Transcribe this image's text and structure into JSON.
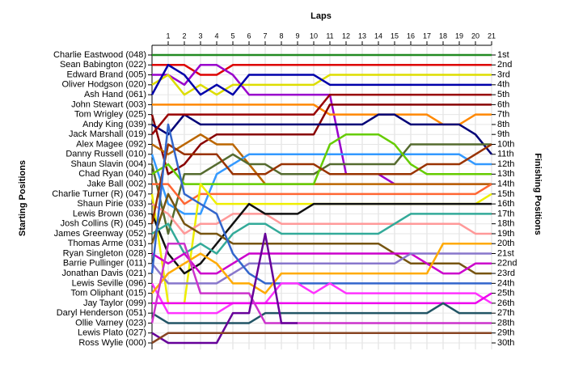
{
  "chart_data": {
    "type": "line",
    "title": "Laps",
    "y_label": "Starting Positions",
    "y2_label": "Finishing Positions",
    "x": [
      0,
      1,
      2,
      3,
      4,
      5,
      6,
      7,
      8,
      9,
      10,
      11,
      12,
      13,
      14,
      15,
      16,
      17,
      18,
      19,
      20,
      21
    ],
    "xlim": [
      0,
      21
    ],
    "xticks": [
      1,
      2,
      3,
      4,
      5,
      6,
      7,
      8,
      9,
      10,
      11,
      12,
      13,
      14,
      15,
      16,
      17,
      18,
      19,
      20,
      21
    ],
    "ylim": [
      1,
      30
    ],
    "yticks": [
      {
        "value": 1,
        "label": "1st"
      },
      {
        "value": 2,
        "label": "2nd"
      },
      {
        "value": 3,
        "label": "3rd"
      },
      {
        "value": 4,
        "label": "4th"
      },
      {
        "value": 5,
        "label": "5th"
      },
      {
        "value": 6,
        "label": "6th"
      },
      {
        "value": 7,
        "label": "7th"
      },
      {
        "value": 8,
        "label": "8th"
      },
      {
        "value": 9,
        "label": "9th"
      },
      {
        "value": 10,
        "label": "10th"
      },
      {
        "value": 11,
        "label": "11th"
      },
      {
        "value": 12,
        "label": "12th"
      },
      {
        "value": 13,
        "label": "13th"
      },
      {
        "value": 14,
        "label": "14th"
      },
      {
        "value": 15,
        "label": "15th"
      },
      {
        "value": 16,
        "label": "16th"
      },
      {
        "value": 17,
        "label": "17th"
      },
      {
        "value": 18,
        "label": "18th"
      },
      {
        "value": 19,
        "label": "19th"
      },
      {
        "value": 20,
        "label": "20th"
      },
      {
        "value": 21,
        "label": "21st"
      },
      {
        "value": 22,
        "label": "22nd"
      },
      {
        "value": 23,
        "label": "23rd"
      },
      {
        "value": 24,
        "label": "24th"
      },
      {
        "value": 25,
        "label": "25th"
      },
      {
        "value": 26,
        "label": "26th"
      },
      {
        "value": 27,
        "label": "27th"
      },
      {
        "value": 28,
        "label": "28th"
      },
      {
        "value": 29,
        "label": "29th"
      },
      {
        "value": 30,
        "label": "30th"
      }
    ],
    "grid": true,
    "series": [
      {
        "name": "Charlie Eastwood (048)",
        "color": "#228b22",
        "values": [
          1,
          1,
          1,
          1,
          1,
          1,
          1,
          1,
          1,
          1,
          1,
          1,
          1,
          1,
          1,
          1,
          1,
          1,
          1,
          1,
          1,
          1
        ]
      },
      {
        "name": "Sean Babington (022)",
        "color": "#dd0000",
        "values": [
          2,
          2,
          2,
          3,
          3,
          2,
          2,
          2,
          2,
          2,
          2,
          2,
          2,
          2,
          2,
          2,
          2,
          2,
          2,
          2,
          2,
          2
        ]
      },
      {
        "name": "Edward Brand (005)",
        "color": "#9900cc",
        "values": [
          3,
          3,
          4,
          2,
          2,
          3,
          5,
          5,
          5,
          5,
          5,
          5,
          13,
          13,
          13,
          14,
          14,
          14,
          14,
          14,
          14,
          14
        ]
      },
      {
        "name": "Oliver Hodgson (020)",
        "color": "#dddd00",
        "values": [
          4,
          3,
          5,
          4,
          5,
          4,
          4,
          4,
          4,
          4,
          4,
          3,
          3,
          3,
          3,
          3,
          3,
          3,
          3,
          3,
          3,
          3
        ]
      },
      {
        "name": "Ash Hand (061)",
        "color": "#0000aa",
        "values": [
          5,
          2,
          3,
          5,
          4,
          5,
          3,
          3,
          3,
          3,
          3,
          4,
          4,
          4,
          4,
          4,
          4,
          4,
          4,
          4,
          4,
          4
        ]
      },
      {
        "name": "John Stewart (003)",
        "color": "#ff8800",
        "values": [
          6,
          6,
          6,
          6,
          6,
          6,
          6,
          6,
          6,
          6,
          6,
          7,
          7,
          7,
          7,
          7,
          7,
          7,
          8,
          8,
          7,
          7
        ]
      },
      {
        "name": "Tom Wrigley (025)",
        "color": "#880000",
        "values": [
          7,
          13,
          12,
          10,
          9,
          9,
          9,
          9,
          9,
          9,
          9,
          6,
          6,
          6,
          6,
          6,
          6,
          6,
          6,
          6,
          6,
          6
        ]
      },
      {
        "name": "Andy King (039)",
        "color": "#000077",
        "values": [
          8,
          9,
          7,
          8,
          8,
          8,
          8,
          8,
          8,
          8,
          8,
          8,
          8,
          8,
          7,
          7,
          8,
          8,
          8,
          8,
          9,
          11
        ]
      },
      {
        "name": "Jack Marshall (019)",
        "color": "#990000",
        "values": [
          9,
          7,
          7,
          7,
          7,
          7,
          7,
          7,
          7,
          7,
          7,
          5,
          5,
          5,
          5,
          5,
          5,
          5,
          5,
          5,
          5,
          5
        ]
      },
      {
        "name": "Alex Magee (092)",
        "color": "#bb6600",
        "values": [
          10,
          11,
          10,
          9,
          10,
          10,
          12,
          14,
          14,
          14,
          14,
          14,
          14,
          14,
          14,
          14,
          14,
          14,
          14,
          14,
          14,
          14
        ]
      },
      {
        "name": "Danny Russell (010)",
        "color": "#3399ff",
        "values": [
          11,
          16,
          17,
          17,
          13,
          12,
          11,
          11,
          11,
          11,
          11,
          11,
          11,
          11,
          11,
          11,
          11,
          11,
          11,
          11,
          12,
          12
        ]
      },
      {
        "name": "Shaun Slavin (004)",
        "color": "#556b2f",
        "values": [
          12,
          19,
          13,
          13,
          12,
          11,
          12,
          12,
          13,
          13,
          13,
          12,
          12,
          12,
          12,
          12,
          10,
          10,
          10,
          10,
          10,
          10
        ]
      },
      {
        "name": "Chad Ryan (040)",
        "color": "#66cc00",
        "values": [
          13,
          12,
          14,
          14,
          14,
          14,
          14,
          14,
          14,
          14,
          14,
          10,
          9,
          9,
          9,
          10,
          12,
          13,
          13,
          13,
          13,
          13
        ]
      },
      {
        "name": "Jake Ball (002)",
        "color": "#ff6633",
        "values": [
          14,
          14,
          16,
          15,
          15,
          15,
          15,
          15,
          15,
          15,
          15,
          15,
          15,
          15,
          15,
          15,
          15,
          15,
          15,
          15,
          15,
          14
        ]
      },
      {
        "name": "Charlie Turner (R) (047)",
        "color": "#eeee00",
        "values": [
          15,
          26,
          26,
          14,
          16,
          16,
          16,
          16,
          16,
          16,
          16,
          16,
          16,
          16,
          16,
          16,
          16,
          16,
          16,
          16,
          16,
          15
        ]
      },
      {
        "name": "Shaun Pirie (033)",
        "color": "#ff9999",
        "values": [
          16,
          17,
          19,
          18,
          18,
          17,
          17,
          17,
          18,
          18,
          18,
          18,
          18,
          18,
          18,
          18,
          18,
          18,
          18,
          18,
          19,
          19
        ]
      },
      {
        "name": "Lewis Brown (036)",
        "color": "#111111",
        "values": [
          17,
          21,
          23,
          22,
          20,
          18,
          16,
          17,
          17,
          17,
          16,
          16,
          16,
          16,
          16,
          16,
          16,
          16,
          16,
          16,
          16,
          16
        ]
      },
      {
        "name": "Josh Collins (R) (045)",
        "color": "#993300",
        "values": [
          18,
          10,
          11,
          11,
          11,
          13,
          13,
          13,
          12,
          12,
          12,
          13,
          13,
          13,
          13,
          13,
          13,
          12,
          12,
          12,
          11,
          10
        ]
      },
      {
        "name": "James Greenway (052)",
        "color": "#33aa99",
        "values": [
          19,
          18,
          21,
          20,
          21,
          19,
          18,
          18,
          19,
          19,
          19,
          19,
          19,
          19,
          19,
          18,
          17,
          17,
          17,
          17,
          17,
          17
        ]
      },
      {
        "name": "Thomas Arme (031)",
        "color": "#775511",
        "values": [
          20,
          15,
          18,
          19,
          19,
          20,
          20,
          20,
          20,
          20,
          20,
          20,
          20,
          20,
          20,
          21,
          22,
          22,
          22,
          22,
          23,
          23
        ]
      },
      {
        "name": "Ryan Singleton (028)",
        "color": "#cc00cc",
        "values": [
          21,
          22,
          21,
          23,
          23,
          22,
          21,
          21,
          21,
          21,
          21,
          21,
          21,
          21,
          21,
          21,
          21,
          22,
          23,
          23,
          22,
          22
        ]
      },
      {
        "name": "Barrie Pullinger (011)",
        "color": "#8877cc",
        "values": [
          22,
          24,
          24,
          24,
          24,
          23,
          22,
          22,
          22,
          22,
          22,
          22,
          22,
          22,
          22,
          22,
          21,
          21,
          21,
          21,
          21,
          21
        ]
      },
      {
        "name": "Jonathan Davis (021)",
        "color": "#3366cc",
        "values": [
          23,
          8,
          15,
          16,
          17,
          21,
          23,
          24,
          24,
          24,
          24,
          24,
          24,
          24,
          24,
          24,
          24,
          24,
          24,
          24,
          24,
          24
        ]
      },
      {
        "name": "Lewis Seville (096)",
        "color": "#ff33ff",
        "values": [
          24,
          27,
          27,
          27,
          27,
          26,
          26,
          26,
          24,
          24,
          25,
          24,
          25,
          25,
          25,
          25,
          25,
          25,
          25,
          25,
          25,
          26
        ]
      },
      {
        "name": "Tom Oliphant (015)",
        "color": "#ffaa00",
        "values": [
          25,
          23,
          22,
          21,
          22,
          24,
          24,
          25,
          23,
          23,
          23,
          23,
          23,
          23,
          23,
          23,
          23,
          23,
          20,
          20,
          20,
          20
        ]
      },
      {
        "name": "Jay Taylor (099)",
        "color": "#ee00ee",
        "values": [
          26,
          26,
          26,
          26,
          26,
          26,
          26,
          26,
          26,
          26,
          26,
          26,
          26,
          26,
          26,
          26,
          26,
          26,
          26,
          26,
          26,
          25
        ]
      },
      {
        "name": "Daryl Henderson (051)",
        "color": "#225566",
        "values": [
          27,
          28,
          28,
          28,
          28,
          28,
          28,
          27,
          27,
          27,
          27,
          27,
          27,
          27,
          27,
          27,
          27,
          27,
          26,
          27,
          27,
          27
        ]
      },
      {
        "name": "Ollie Varney (023)",
        "color": "#cc33cc",
        "values": [
          28,
          20,
          20,
          25,
          25,
          25,
          25,
          28,
          28,
          28,
          28,
          28,
          28,
          28,
          28,
          28,
          28,
          28,
          28,
          28,
          28,
          28
        ]
      },
      {
        "name": "Lewis Plato (027)",
        "color": "#660099",
        "values": [
          29,
          30,
          30,
          30,
          30,
          27,
          27,
          19,
          28,
          28,
          null,
          null,
          null,
          null,
          null,
          null,
          null,
          null,
          null,
          null,
          null,
          null
        ]
      },
      {
        "name": "Ross Wylie (000)",
        "color": "#884422",
        "values": [
          30,
          29,
          29,
          29,
          29,
          29,
          29,
          29,
          29,
          29,
          29,
          29,
          29,
          29,
          29,
          29,
          29,
          29,
          29,
          29,
          29,
          29
        ]
      }
    ]
  }
}
